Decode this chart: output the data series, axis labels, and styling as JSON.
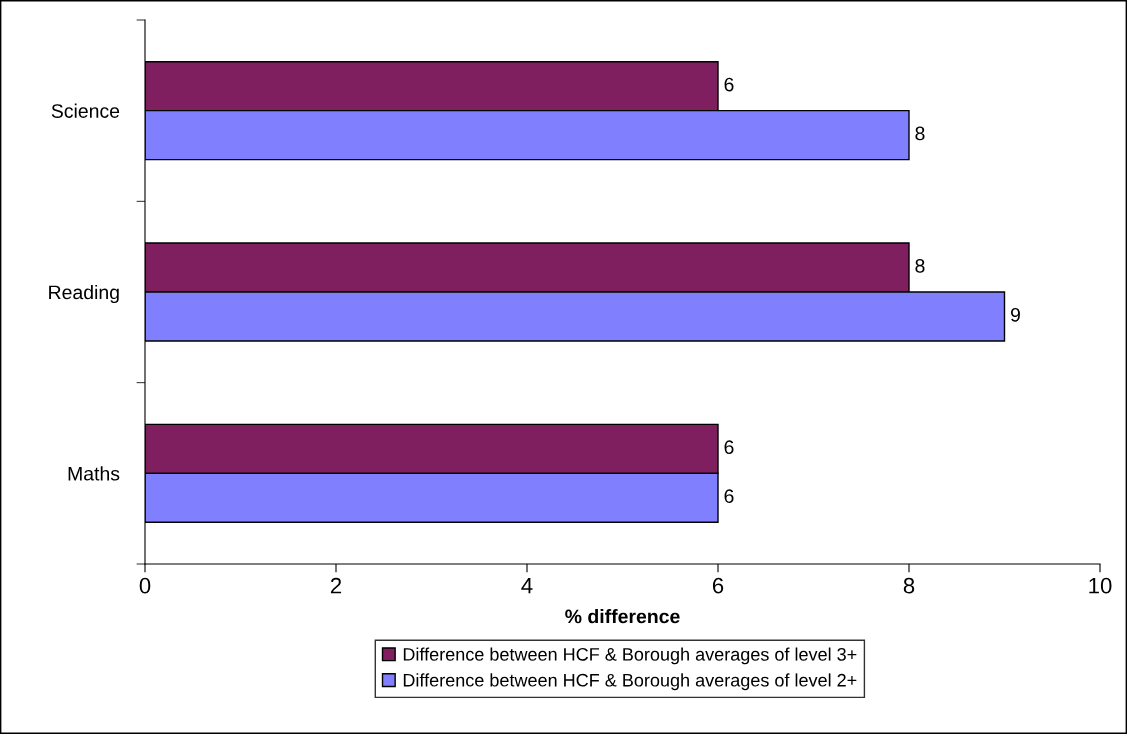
{
  "chart_data": {
    "type": "bar",
    "orientation": "horizontal",
    "xlabel": "% difference",
    "categories": [
      "Science",
      "Reading",
      "Maths"
    ],
    "series": [
      {
        "name": "Difference between HCF & Borough averages of level 3+",
        "color": "#7f1f5f",
        "values": [
          6,
          8,
          6
        ]
      },
      {
        "name": "Difference between HCF & Borough averages of level 2+",
        "color": "#8080ff",
        "values": [
          8,
          9,
          6
        ]
      }
    ],
    "xlim": [
      0,
      10
    ],
    "xticks": [
      0,
      2,
      4,
      6,
      8,
      10
    ],
    "data_labels": true,
    "grid": false,
    "legend": "bottom"
  }
}
